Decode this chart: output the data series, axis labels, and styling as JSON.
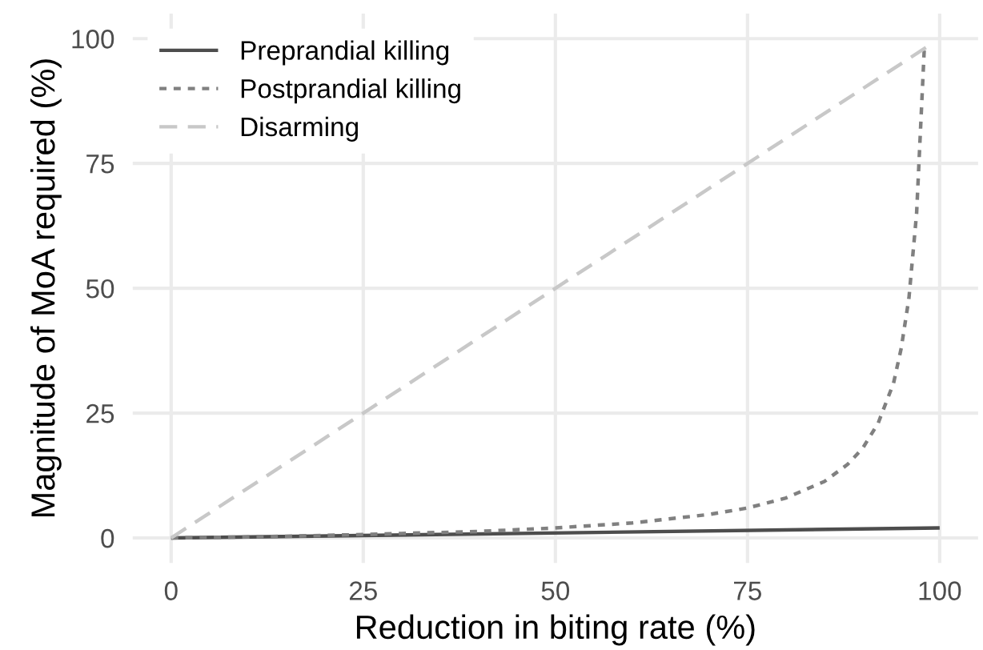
{
  "chart_data": {
    "type": "line",
    "xlabel": "Reduction in biting rate (%)",
    "ylabel": "Magnitude of MoA required (%)",
    "xlim": [
      -5,
      105
    ],
    "ylim": [
      -5,
      105
    ],
    "xticks": [
      0,
      25,
      50,
      75,
      100
    ],
    "yticks": [
      0,
      25,
      50,
      75,
      100
    ],
    "grid": true,
    "legend": "top left",
    "series": [
      {
        "name": "Preprandial killing",
        "color": "#4d4d4d",
        "line_style": "solid",
        "x": [
          0,
          100
        ],
        "values": [
          0,
          2
        ]
      },
      {
        "name": "Postprandial killing",
        "color": "#808080",
        "line_style": "dotted",
        "x": [
          0,
          10,
          20,
          30,
          40,
          50,
          60,
          70,
          75,
          80,
          85,
          88,
          90,
          92,
          94,
          95,
          96,
          97,
          98
        ],
        "values": [
          0,
          0.2,
          0.5,
          0.9,
          1.3,
          2,
          3,
          4.7,
          6,
          8,
          11.3,
          14.7,
          18,
          23,
          31,
          38,
          48,
          65,
          98
        ]
      },
      {
        "name": "Disarming",
        "color": "#c8c8c8",
        "line_style": "dashed",
        "x": [
          0,
          99
        ],
        "values": [
          0,
          99
        ]
      }
    ]
  }
}
